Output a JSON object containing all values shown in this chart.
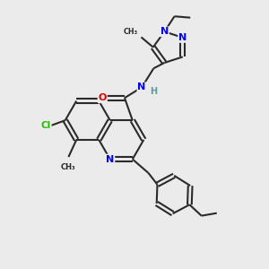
{
  "background_color": "#ebebeb",
  "bond_color": "#2a2a2a",
  "atom_colors": {
    "N": "#0000ee",
    "O": "#dd0000",
    "Cl": "#22bb00",
    "H": "#5a9a9a",
    "C": "#2a2a2a"
  },
  "figsize": [
    3.0,
    3.0
  ],
  "dpi": 100
}
